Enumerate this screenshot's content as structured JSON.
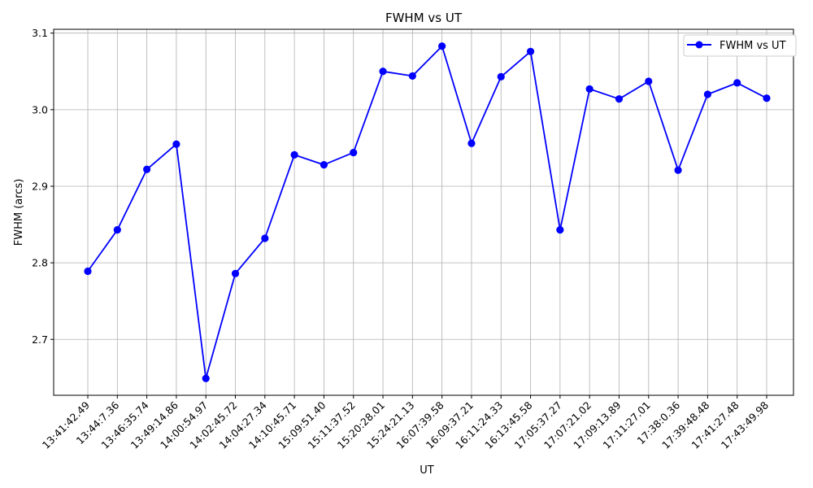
{
  "chart_data": {
    "type": "line",
    "title": "FWHM vs UT",
    "xlabel": "UT",
    "ylabel": "FWHM (arcs)",
    "categories": [
      "13:41:42.49",
      "13:44:7.36",
      "13:46:35.74",
      "13:49:14.86",
      "14:00:54.97",
      "14:02:45.72",
      "14:04:27.34",
      "14:10:45.71",
      "15:09:51.40",
      "15:11:37.52",
      "15:20:28.01",
      "15:24:21.13",
      "16:07:39.58",
      "16:09:37.21",
      "16:11:24.33",
      "16:13:45.58",
      "17:05:37.27",
      "17:07:21.02",
      "17:09:13.89",
      "17:11:27.01",
      "17:38:0.36",
      "17:39:48.48",
      "17:41:27.48",
      "17:43:49.98"
    ],
    "series": [
      {
        "name": "FWHM vs UT",
        "color": "#0000ff",
        "values": [
          2.789,
          2.843,
          2.922,
          2.955,
          2.649,
          2.786,
          2.832,
          2.941,
          2.928,
          2.944,
          3.05,
          3.044,
          3.083,
          2.956,
          3.043,
          3.076,
          2.843,
          3.027,
          3.014,
          3.037,
          2.921,
          3.02,
          3.035,
          3.015
        ]
      }
    ],
    "yticks": [
      "2.7",
      "2.8",
      "2.9",
      "3.0",
      "3.1"
    ],
    "ylim": [
      2.627,
      3.105
    ],
    "grid": true,
    "legend_position": "top-right"
  }
}
